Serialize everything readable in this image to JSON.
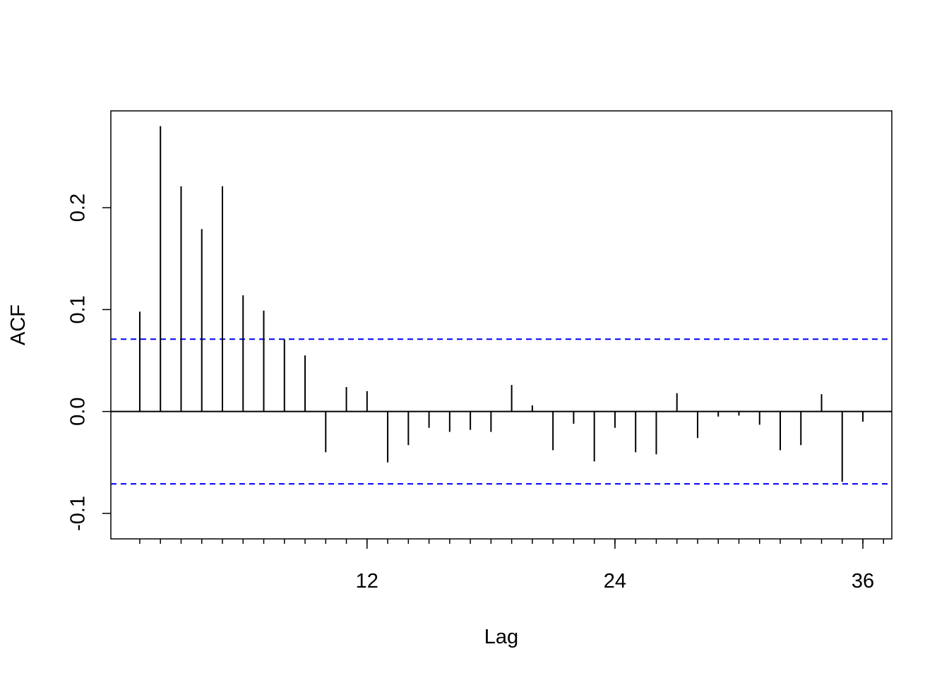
{
  "chart_data": {
    "type": "bar",
    "subtype": "acf",
    "xlabel": "Lag",
    "ylabel": "ACF",
    "xlim": [
      -0.4,
      37.4
    ],
    "ylim": [
      -0.125,
      0.295
    ],
    "x_ticks_major": [
      12,
      24,
      36
    ],
    "x_tick_labels": [
      "12",
      "24",
      "36"
    ],
    "x_ticks_minor": [
      1,
      2,
      3,
      4,
      5,
      6,
      7,
      8,
      9,
      10,
      11,
      12,
      13,
      14,
      15,
      16,
      17,
      18,
      19,
      20,
      21,
      22,
      23,
      24,
      25,
      26,
      27,
      28,
      29,
      30,
      31,
      32,
      33,
      34,
      35,
      36,
      37
    ],
    "y_ticks": [
      -0.1,
      0.0,
      0.1,
      0.2
    ],
    "y_tick_labels": [
      "-0.1",
      "0.0",
      "0.1",
      "0.2"
    ],
    "confidence_bounds": [
      0.071,
      -0.071
    ],
    "zero_line": 0.0,
    "x": [
      1,
      2,
      3,
      4,
      5,
      6,
      7,
      8,
      9,
      10,
      11,
      12,
      13,
      14,
      15,
      16,
      17,
      18,
      19,
      20,
      21,
      22,
      23,
      24,
      25,
      26,
      27,
      28,
      29,
      30,
      31,
      32,
      33,
      34,
      35,
      36
    ],
    "values": [
      0.098,
      0.28,
      0.221,
      0.179,
      0.221,
      0.114,
      0.099,
      0.071,
      0.055,
      -0.04,
      0.024,
      0.02,
      -0.05,
      -0.033,
      -0.016,
      -0.02,
      -0.018,
      -0.02,
      0.026,
      0.006,
      -0.038,
      -0.012,
      -0.049,
      -0.016,
      -0.04,
      -0.042,
      0.018,
      -0.026,
      -0.005,
      -0.004,
      -0.013,
      -0.038,
      -0.033,
      0.017,
      -0.069,
      -0.01
    ],
    "grid": false,
    "colors": {
      "bars": "#000000",
      "confidence_bounds": "#0000ff",
      "frame": "#000000"
    }
  }
}
